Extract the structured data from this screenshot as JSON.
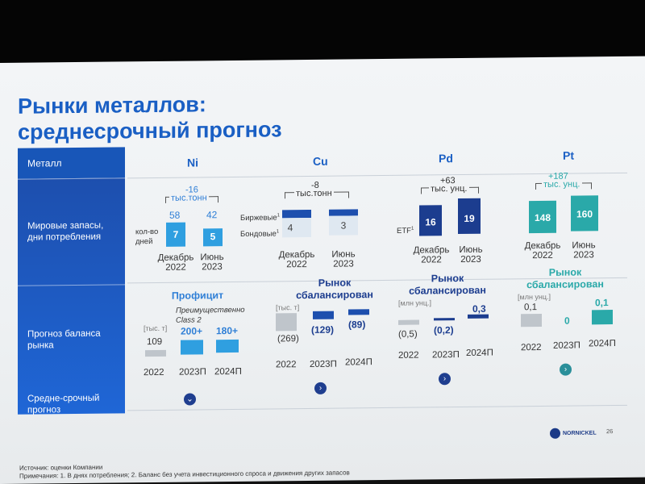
{
  "title_line1": "Рынки металлов:",
  "title_line2": "среднесрочный прогноз",
  "left_column": {
    "header": "Металл",
    "row1": "Мировые запасы, дни потребления",
    "row2": "Прогноз баланса рынка",
    "row3": "Средне-срочный прогноз"
  },
  "metals": [
    "Ni",
    "Cu",
    "Pd",
    "Pt"
  ],
  "inventory": {
    "ni": {
      "delta": "-16",
      "unit": "тыс.тонн",
      "top_dec": "58",
      "top_jun": "42",
      "dec": "7",
      "jun": "5",
      "side": "кол-во дней"
    },
    "cu": {
      "delta": "-8",
      "unit": "тыс.тонн",
      "label_exchange": "Биржевые",
      "label_bonded": "Бондовые",
      "note": "1",
      "dec": "4",
      "jun": "3"
    },
    "pd": {
      "delta": "+63",
      "unit": "тыс. унц.",
      "etf": "ETF",
      "note": "1",
      "dec": "16",
      "jun": "19"
    },
    "pt": {
      "delta": "+187",
      "unit": "тыс. унц.",
      "dec": "148",
      "jun": "160"
    },
    "dates": {
      "dec_l1": "Декабрь",
      "dec_l2": "2022",
      "jun_l1": "Июнь",
      "jun_l2": "2023"
    }
  },
  "balance": {
    "ni": {
      "status": "Профицит",
      "note": "Преимущественно Class 2",
      "unit": "[тыс. т]",
      "v2022": "109",
      "v2023": "200+",
      "v2024": "180+"
    },
    "cu": {
      "status_l1": "Рынок",
      "status_l2": "сбалансирован",
      "unit": "[тыс. т]",
      "v2022": "(269)",
      "v2023": "(129)",
      "v2024": "(89)"
    },
    "pd": {
      "status_l1": "Рынок",
      "status_l2": "сбалансирован",
      "unit": "[млн унц.]",
      "v2022": "(0,5)",
      "v2023": "(0,2)",
      "v2024": "0,3"
    },
    "pt": {
      "status_l1": "Рынок",
      "status_l2": "сбалансирован",
      "unit": "[млн унц.]",
      "v2022": "0,1",
      "v2023": "0",
      "v2024": "0,1"
    },
    "years": {
      "y1": "2022",
      "y2": "2023П",
      "y3": "2024П"
    }
  },
  "footer": {
    "source": "Источник: оценки Компании",
    "notes": "Примечания: 1. В днях потребления; 2. Баланс без учета инвестиционного спроса и движения других запасов",
    "logo": "NORNICKEL",
    "page": "26"
  },
  "colors": {
    "accent": "#1a5fc4",
    "ni": "#2f9fe0",
    "cu": "#1d4fae",
    "pd": "#1c3d8f",
    "pt": "#2aa9a9"
  }
}
